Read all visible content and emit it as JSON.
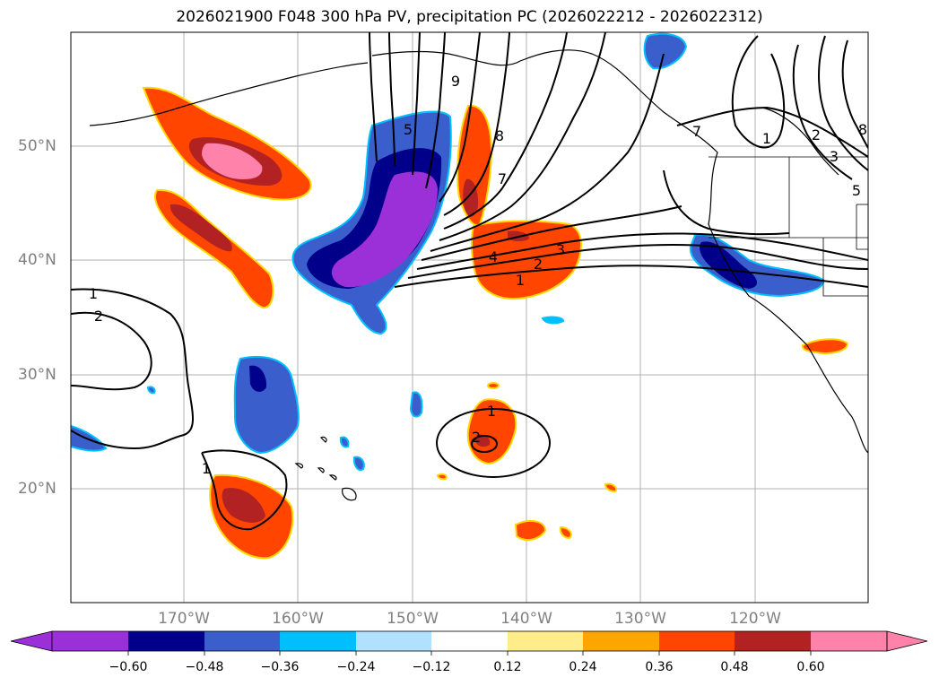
{
  "title": "2026021900 F048 300 hPa PV, precipitation PC (2026022212 - 2026022312)",
  "map": {
    "lat_labels": [
      "50°N",
      "40°N",
      "30°N",
      "20°N"
    ],
    "lon_labels": [
      "170°W",
      "160°W",
      "150°W",
      "140°W",
      "130°W",
      "120°W"
    ],
    "pv_contour_labels": [
      "1",
      "2",
      "3",
      "4",
      "7",
      "8",
      "9",
      "5",
      "1",
      "2",
      "7",
      "1",
      "2",
      "1",
      "1",
      "2",
      "3",
      "5",
      "8"
    ],
    "shading_variable": "precipitation PC",
    "contour_variable": "300 hPa PV"
  },
  "colorbar": {
    "tick_labels": [
      "−0.60",
      "−0.48",
      "−0.36",
      "−0.24",
      "−0.12",
      "0.12",
      "0.24",
      "0.36",
      "0.48",
      "0.60"
    ],
    "colors": [
      "#9b30d9",
      "#00008b",
      "#3a5fcd",
      "#00bfff",
      "#b0e2ff",
      "#ffffff",
      "#ffec8b",
      "#ffa500",
      "#ff4500",
      "#b22222",
      "#ff82ab"
    ],
    "extend": "both"
  },
  "colors": {
    "grid": "#b0b0b0",
    "coastline": "#000000",
    "contour": "#000000",
    "tick_text": "#808080"
  }
}
